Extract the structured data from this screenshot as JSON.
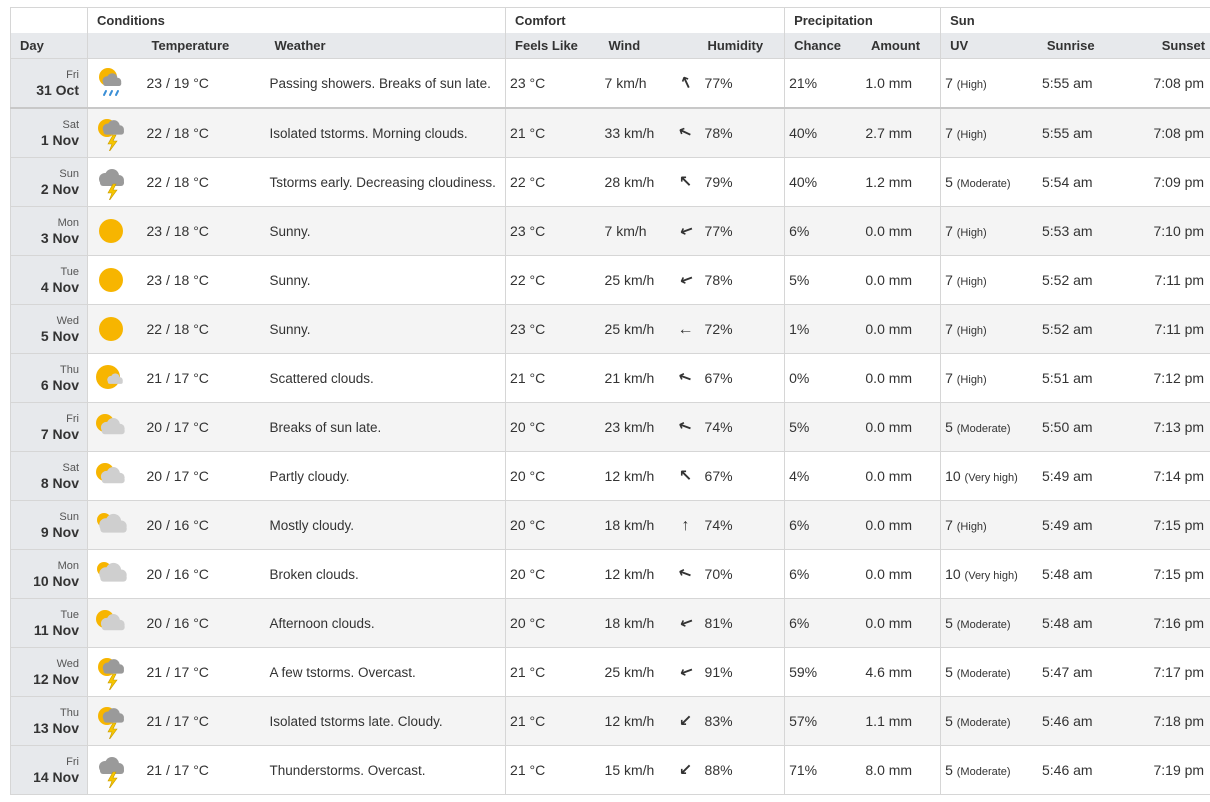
{
  "headers": {
    "groups": {
      "conditions": "Conditions",
      "comfort": "Comfort",
      "precipitation": "Precipitation",
      "sun": "Sun"
    },
    "columns": {
      "day": "Day",
      "temperature": "Temperature",
      "weather": "Weather",
      "feels_like": "Feels Like",
      "wind": "Wind",
      "humidity": "Humidity",
      "chance": "Chance",
      "amount": "Amount",
      "uv": "UV",
      "sunrise": "Sunrise",
      "sunset": "Sunset"
    }
  },
  "rows": [
    {
      "dow": "Fri",
      "date": "31 Oct",
      "icon": "sun-cloud-rain-icon",
      "temp": "23 / 19 °C",
      "weather": "Passing showers. Breaks of sun late.",
      "feels": "23 °C",
      "wind": "7 km/h",
      "wind_arrow": "↖",
      "wind_rot": 20,
      "humidity": "77%",
      "chance": "21%",
      "amount": "1.0 mm",
      "uv": "7",
      "uv_label": "(High)",
      "sunrise": "5:55 am",
      "sunset": "7:08 pm"
    },
    {
      "dow": "Sat",
      "date": "1 Nov",
      "icon": "sun-cloud-thunder-icon",
      "temp": "22 / 18 °C",
      "weather": "Isolated tstorms. Morning clouds.",
      "feels": "21 °C",
      "wind": "33 km/h",
      "wind_arrow": "↖",
      "wind_rot": -20,
      "humidity": "78%",
      "chance": "40%",
      "amount": "2.7 mm",
      "uv": "7",
      "uv_label": "(High)",
      "sunrise": "5:55 am",
      "sunset": "7:08 pm"
    },
    {
      "dow": "Sun",
      "date": "2 Nov",
      "icon": "cloud-thunder-icon",
      "temp": "22 / 18 °C",
      "weather": "Tstorms early. Decreasing cloudiness.",
      "feels": "22 °C",
      "wind": "28 km/h",
      "wind_arrow": "↖",
      "wind_rot": 0,
      "humidity": "79%",
      "chance": "40%",
      "amount": "1.2 mm",
      "uv": "5",
      "uv_label": "(Moderate)",
      "sunrise": "5:54 am",
      "sunset": "7:09 pm"
    },
    {
      "dow": "Mon",
      "date": "3 Nov",
      "icon": "sun-icon",
      "temp": "23 / 18 °C",
      "weather": "Sunny.",
      "feels": "23 °C",
      "wind": "7 km/h",
      "wind_arrow": "↙",
      "wind_rot": 25,
      "humidity": "77%",
      "chance": "6%",
      "amount": "0.0 mm",
      "uv": "7",
      "uv_label": "(High)",
      "sunrise": "5:53 am",
      "sunset": "7:10 pm"
    },
    {
      "dow": "Tue",
      "date": "4 Nov",
      "icon": "sun-icon",
      "temp": "23 / 18 °C",
      "weather": "Sunny.",
      "feels": "22 °C",
      "wind": "25 km/h",
      "wind_arrow": "↙",
      "wind_rot": 25,
      "humidity": "78%",
      "chance": "5%",
      "amount": "0.0 mm",
      "uv": "7",
      "uv_label": "(High)",
      "sunrise": "5:52 am",
      "sunset": "7:11 pm"
    },
    {
      "dow": "Wed",
      "date": "5 Nov",
      "icon": "sun-icon",
      "temp": "22 / 18 °C",
      "weather": "Sunny.",
      "feels": "23 °C",
      "wind": "25 km/h",
      "wind_arrow": "←",
      "wind_rot": 0,
      "humidity": "72%",
      "chance": "1%",
      "amount": "0.0 mm",
      "uv": "7",
      "uv_label": "(High)",
      "sunrise": "5:52 am",
      "sunset": "7:11 pm"
    },
    {
      "dow": "Thu",
      "date": "6 Nov",
      "icon": "sun-small-cloud-icon",
      "temp": "21 / 17 °C",
      "weather": "Scattered clouds.",
      "feels": "21 °C",
      "wind": "21 km/h",
      "wind_arrow": "↖",
      "wind_rot": -25,
      "humidity": "67%",
      "chance": "0%",
      "amount": "0.0 mm",
      "uv": "7",
      "uv_label": "(High)",
      "sunrise": "5:51 am",
      "sunset": "7:12 pm"
    },
    {
      "dow": "Fri",
      "date": "7 Nov",
      "icon": "sun-cloud-icon",
      "temp": "20 / 17 °C",
      "weather": "Breaks of sun late.",
      "feels": "20 °C",
      "wind": "23 km/h",
      "wind_arrow": "↖",
      "wind_rot": -25,
      "humidity": "74%",
      "chance": "5%",
      "amount": "0.0 mm",
      "uv": "5",
      "uv_label": "(Moderate)",
      "sunrise": "5:50 am",
      "sunset": "7:13 pm"
    },
    {
      "dow": "Sat",
      "date": "8 Nov",
      "icon": "sun-cloud-icon",
      "temp": "20 / 17 °C",
      "weather": "Partly cloudy.",
      "feels": "20 °C",
      "wind": "12 km/h",
      "wind_arrow": "↖",
      "wind_rot": 0,
      "humidity": "67%",
      "chance": "4%",
      "amount": "0.0 mm",
      "uv": "10",
      "uv_label": "(Very high)",
      "sunrise": "5:49 am",
      "sunset": "7:14 pm"
    },
    {
      "dow": "Sun",
      "date": "9 Nov",
      "icon": "cloud-sun-behind-icon",
      "temp": "20 / 16 °C",
      "weather": "Mostly cloudy.",
      "feels": "20 °C",
      "wind": "18 km/h",
      "wind_arrow": "↑",
      "wind_rot": 0,
      "humidity": "74%",
      "chance": "6%",
      "amount": "0.0 mm",
      "uv": "7",
      "uv_label": "(High)",
      "sunrise": "5:49 am",
      "sunset": "7:15 pm"
    },
    {
      "dow": "Mon",
      "date": "10 Nov",
      "icon": "cloud-sun-behind-icon",
      "temp": "20 / 16 °C",
      "weather": "Broken clouds.",
      "feels": "20 °C",
      "wind": "12 km/h",
      "wind_arrow": "↖",
      "wind_rot": -25,
      "humidity": "70%",
      "chance": "6%",
      "amount": "0.0 mm",
      "uv": "10",
      "uv_label": "(Very high)",
      "sunrise": "5:48 am",
      "sunset": "7:15 pm"
    },
    {
      "dow": "Tue",
      "date": "11 Nov",
      "icon": "sun-cloud-icon",
      "temp": "20 / 16 °C",
      "weather": "Afternoon clouds.",
      "feels": "20 °C",
      "wind": "18 km/h",
      "wind_arrow": "↙",
      "wind_rot": 25,
      "humidity": "81%",
      "chance": "6%",
      "amount": "0.0 mm",
      "uv": "5",
      "uv_label": "(Moderate)",
      "sunrise": "5:48 am",
      "sunset": "7:16 pm"
    },
    {
      "dow": "Wed",
      "date": "12 Nov",
      "icon": "sun-cloud-thunder-icon",
      "temp": "21 / 17 °C",
      "weather": "A few tstorms. Overcast.",
      "feels": "21 °C",
      "wind": "25 km/h",
      "wind_arrow": "↙",
      "wind_rot": 25,
      "humidity": "91%",
      "chance": "59%",
      "amount": "4.6 mm",
      "uv": "5",
      "uv_label": "(Moderate)",
      "sunrise": "5:47 am",
      "sunset": "7:17 pm"
    },
    {
      "dow": "Thu",
      "date": "13 Nov",
      "icon": "sun-cloud-thunder-icon",
      "temp": "21 / 17 °C",
      "weather": "Isolated tstorms late. Cloudy.",
      "feels": "21 °C",
      "wind": "12 km/h",
      "wind_arrow": "↙",
      "wind_rot": 0,
      "humidity": "83%",
      "chance": "57%",
      "amount": "1.1 mm",
      "uv": "5",
      "uv_label": "(Moderate)",
      "sunrise": "5:46 am",
      "sunset": "7:18 pm"
    },
    {
      "dow": "Fri",
      "date": "14 Nov",
      "icon": "cloud-thunder-icon",
      "temp": "21 / 17 °C",
      "weather": "Thunderstorms. Overcast.",
      "feels": "21 °C",
      "wind": "15 km/h",
      "wind_arrow": "↙",
      "wind_rot": 0,
      "humidity": "88%",
      "chance": "71%",
      "amount": "8.0 mm",
      "uv": "5",
      "uv_label": "(Moderate)",
      "sunrise": "5:46 am",
      "sunset": "7:19 pm"
    }
  ],
  "colors": {
    "sun": "#f7b500",
    "cloud_light": "#cfcfcf",
    "cloud_dark": "#9a9a9a",
    "rain": "#3a8fd6",
    "bolt": "#f7c600"
  }
}
